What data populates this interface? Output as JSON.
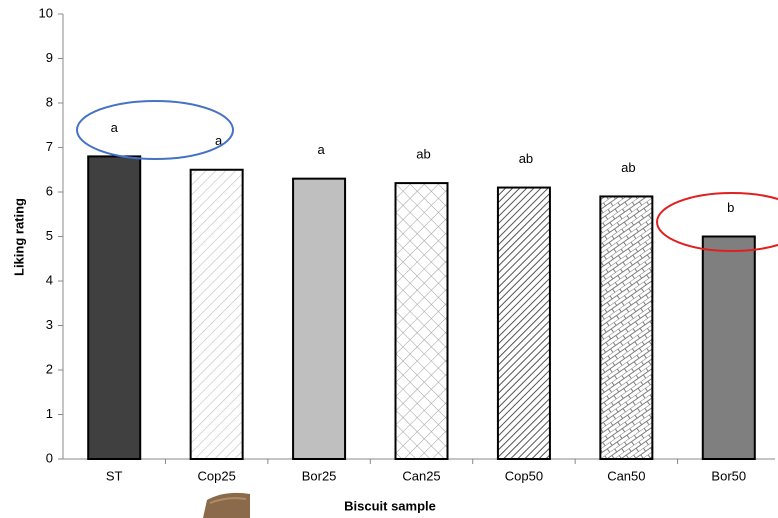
{
  "chart_data": {
    "type": "bar",
    "x_label": "Biscuit sample",
    "y_label": "Liking rating",
    "categories": [
      "ST",
      "Cop25",
      "Bor25",
      "Can25",
      "Cop50",
      "Can50",
      "Bor50"
    ],
    "values": [
      6.8,
      6.5,
      6.3,
      6.2,
      6.1,
      5.9,
      5.0
    ],
    "annotations": [
      "a",
      "a",
      "a",
      "ab",
      "ab",
      "ab",
      "b"
    ],
    "colors": [
      "#404040",
      "#c0c0c0",
      "#bfbfbf",
      "#a0a0a0",
      "#555555",
      "#808080",
      "#7f7f7f"
    ],
    "patterns": [
      "solid",
      "diag-light",
      "solid",
      "diamond",
      "diag-dense",
      "brick",
      "solid"
    ],
    "ylim": [
      0,
      10
    ],
    "yticks": [
      0,
      1,
      2,
      3,
      4,
      5,
      6,
      7,
      8,
      9,
      10
    ],
    "grid": false
  }
}
